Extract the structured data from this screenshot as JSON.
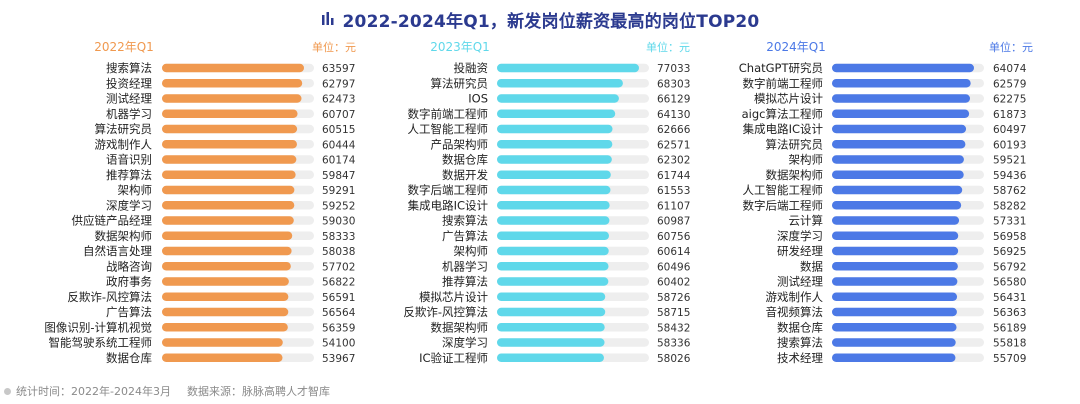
{
  "title": "2022-2024年Q1，新发岗位薪资最高的岗位TOP20",
  "colors": {
    "title": "#2b3a8f",
    "track": "#eeeeee"
  },
  "footer": {
    "time": "统计时间：2022年-2024年3月",
    "source": "数据来源：脉脉高聘人才智库"
  },
  "chart_data": [
    {
      "type": "bar",
      "title": "2022年Q1",
      "unit": "单位：元",
      "color": "#f0994f",
      "categories": [
        "搜索算法",
        "投资经理",
        "测试经理",
        "机器学习",
        "算法研究员",
        "游戏制作人",
        "语音识别",
        "推荐算法",
        "架构师",
        "深度学习",
        "供应链产品经理",
        "数据架构师",
        "自然语言处理",
        "战略咨询",
        "政府事务",
        "反欺诈-风控算法",
        "广告算法",
        "图像识别-计算机视觉",
        "智能驾驶系统工程师",
        "数据仓库"
      ],
      "values": [
        63597,
        62797,
        62473,
        60707,
        60515,
        60444,
        60174,
        59847,
        59291,
        59252,
        59030,
        58333,
        58038,
        57702,
        56822,
        56591,
        56564,
        56359,
        54100,
        53967
      ]
    },
    {
      "type": "bar",
      "title": "2023年Q1",
      "unit": "单位：元",
      "color": "#5fd8ea",
      "categories": [
        "投融资",
        "算法研究员",
        "IOS",
        "数字前端工程师",
        "人工智能工程师",
        "产品架构师",
        "数据仓库",
        "数据开发",
        "数字后端工程师",
        "集成电路IC设计",
        "搜索算法",
        "广告算法",
        "架构师",
        "机器学习",
        "推荐算法",
        "模拟芯片设计",
        "反欺诈-风控算法",
        "数据架构师",
        "深度学习",
        "IC验证工程师"
      ],
      "values": [
        77033,
        68303,
        66129,
        64130,
        62666,
        62571,
        62302,
        61744,
        61553,
        61107,
        60987,
        60756,
        60614,
        60496,
        60402,
        58726,
        58715,
        58432,
        58336,
        58026
      ]
    },
    {
      "type": "bar",
      "title": "2024年Q1",
      "unit": "单位：元",
      "color": "#4c79e6",
      "categories": [
        "ChatGPT研究员",
        "数字前端工程师",
        "模拟芯片设计",
        "aigc算法工程师",
        "集成电路IC设计",
        "算法研究员",
        "架构师",
        "数据架构师",
        "人工智能工程师",
        "数字后端工程师",
        "云计算",
        "深度学习",
        "研发经理",
        "数据",
        "测试经理",
        "游戏制作人",
        "音视频算法",
        "数据仓库",
        "搜索算法",
        "技术经理"
      ],
      "values": [
        64074,
        62579,
        62275,
        61873,
        60497,
        60193,
        59521,
        59436,
        58762,
        58282,
        57331,
        56958,
        56925,
        56792,
        56580,
        56431,
        56363,
        56189,
        55818,
        55709
      ]
    }
  ]
}
